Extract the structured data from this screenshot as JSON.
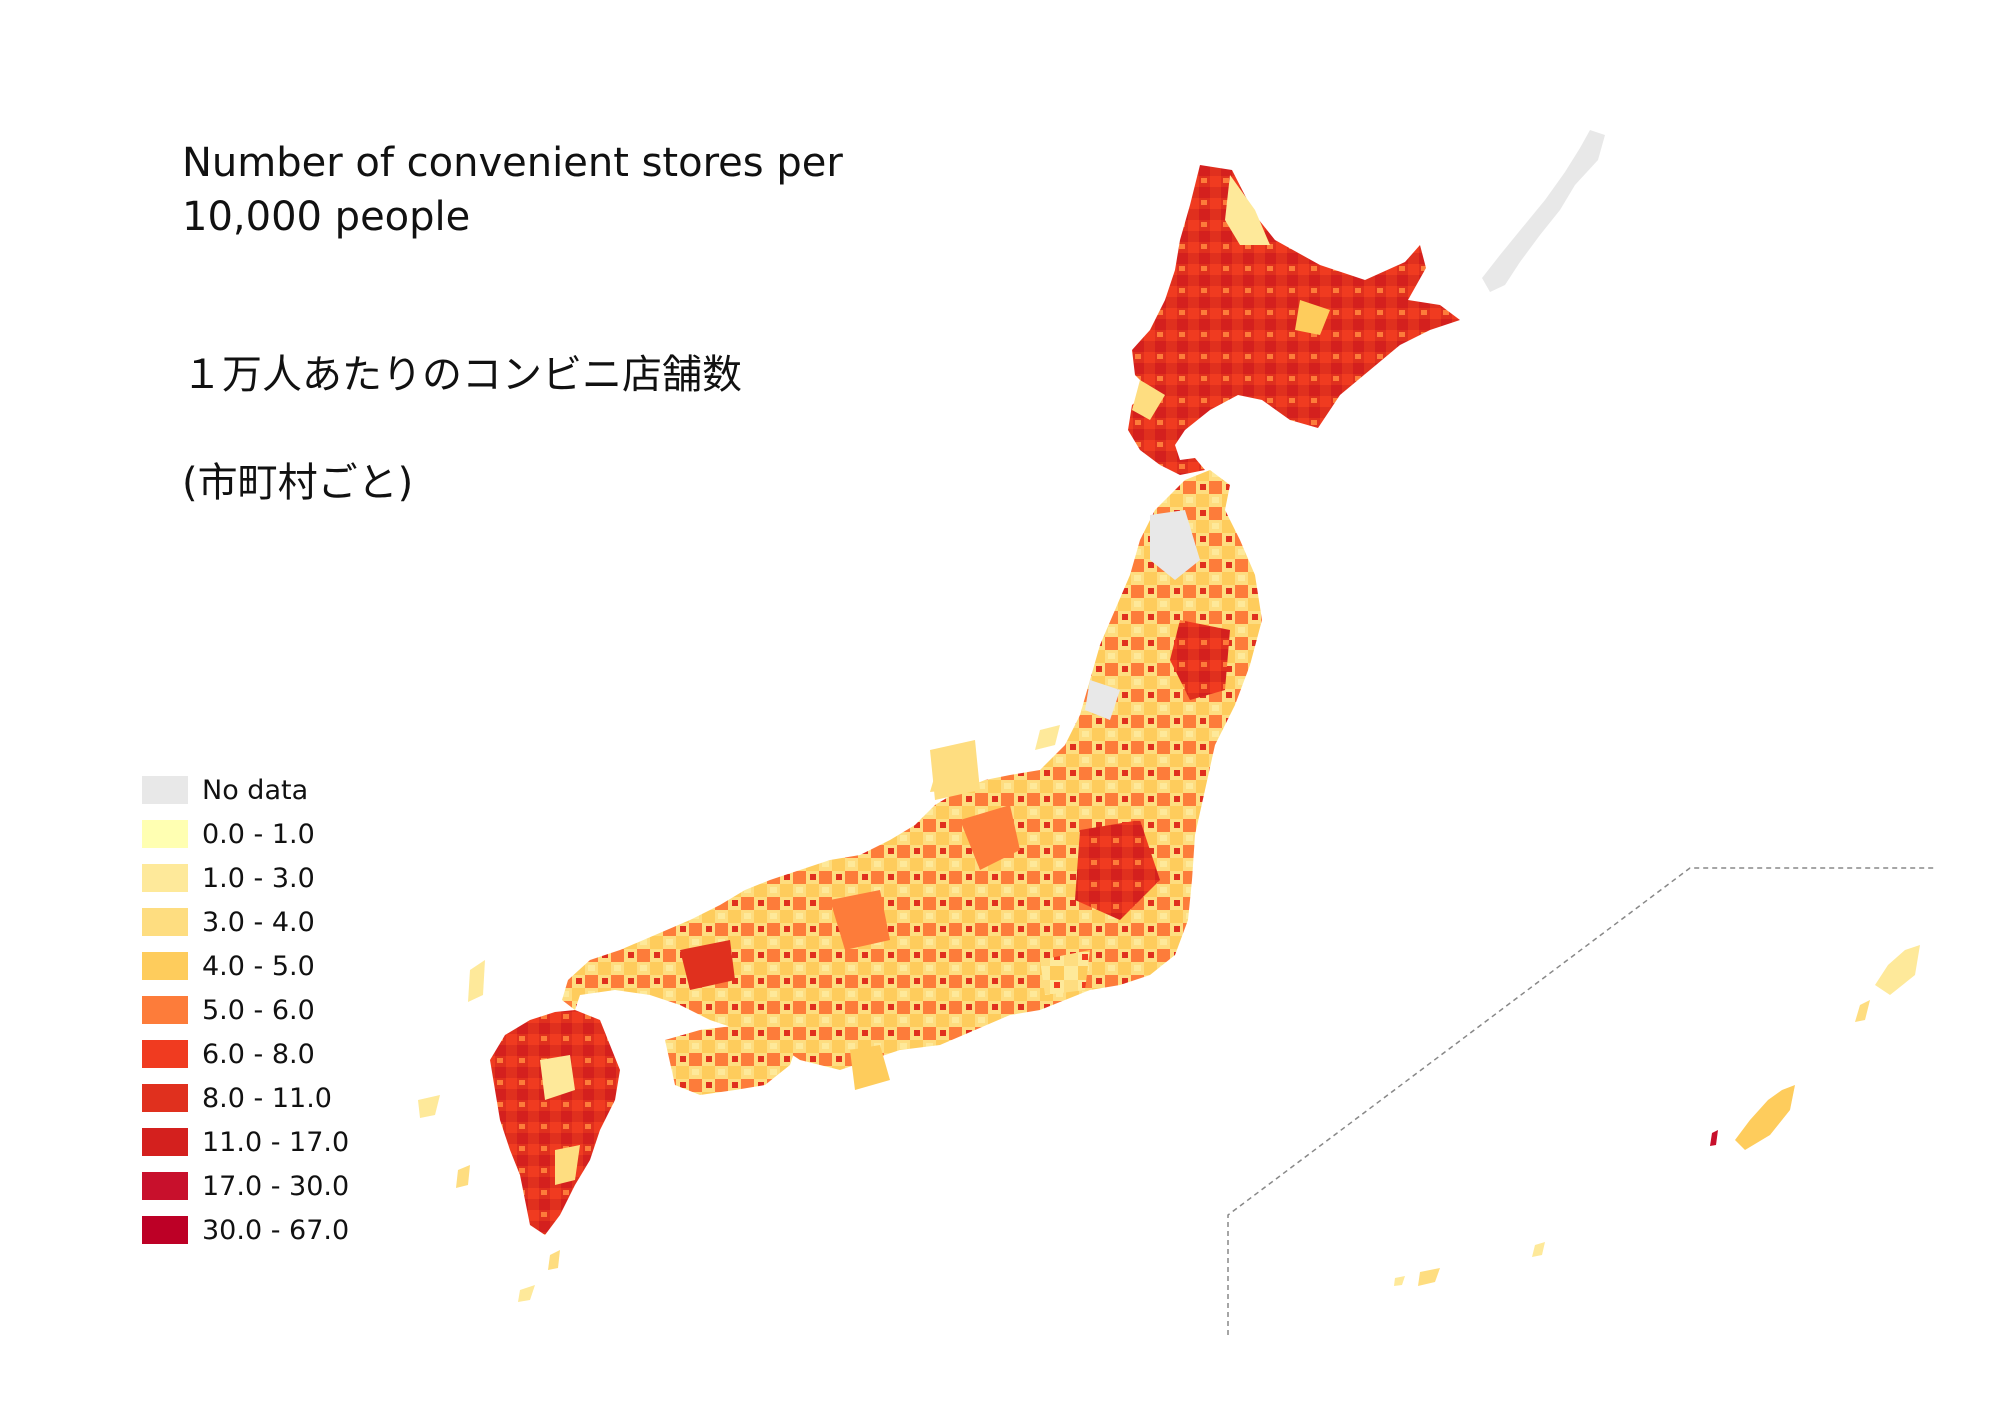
{
  "title": {
    "en": "Number of convenient stores per\n10,000 people",
    "ja_line1": "１万人あたりのコンビニ店舗数",
    "ja_line2": "(市町村ごと)"
  },
  "legend": [
    {
      "label": "No data",
      "color": "#e8e8e8"
    },
    {
      "label": "0.0 - 1.0",
      "color": "#ffffb2"
    },
    {
      "label": "1.0 - 3.0",
      "color": "#fee99a"
    },
    {
      "label": "3.0 - 4.0",
      "color": "#fedd80"
    },
    {
      "label": "4.0 - 5.0",
      "color": "#fecc5c"
    },
    {
      "label": "5.0 - 6.0",
      "color": "#fd7c3a"
    },
    {
      "label": "6.0 - 8.0",
      "color": "#f03b20"
    },
    {
      "label": "8.0 - 11.0",
      "color": "#e0301e"
    },
    {
      "label": "11.0 - 17.0",
      "color": "#d4201e"
    },
    {
      "label": "17.0 - 30.0",
      "color": "#c8102c"
    },
    {
      "label": "30.0 - 67.0",
      "color": "#bd0026"
    }
  ],
  "map": {
    "regions": [
      "hokkaido",
      "northern-territories",
      "honshu",
      "shikoku",
      "kyushu",
      "okinawa-islands"
    ],
    "inset": "okinawa-inset"
  }
}
